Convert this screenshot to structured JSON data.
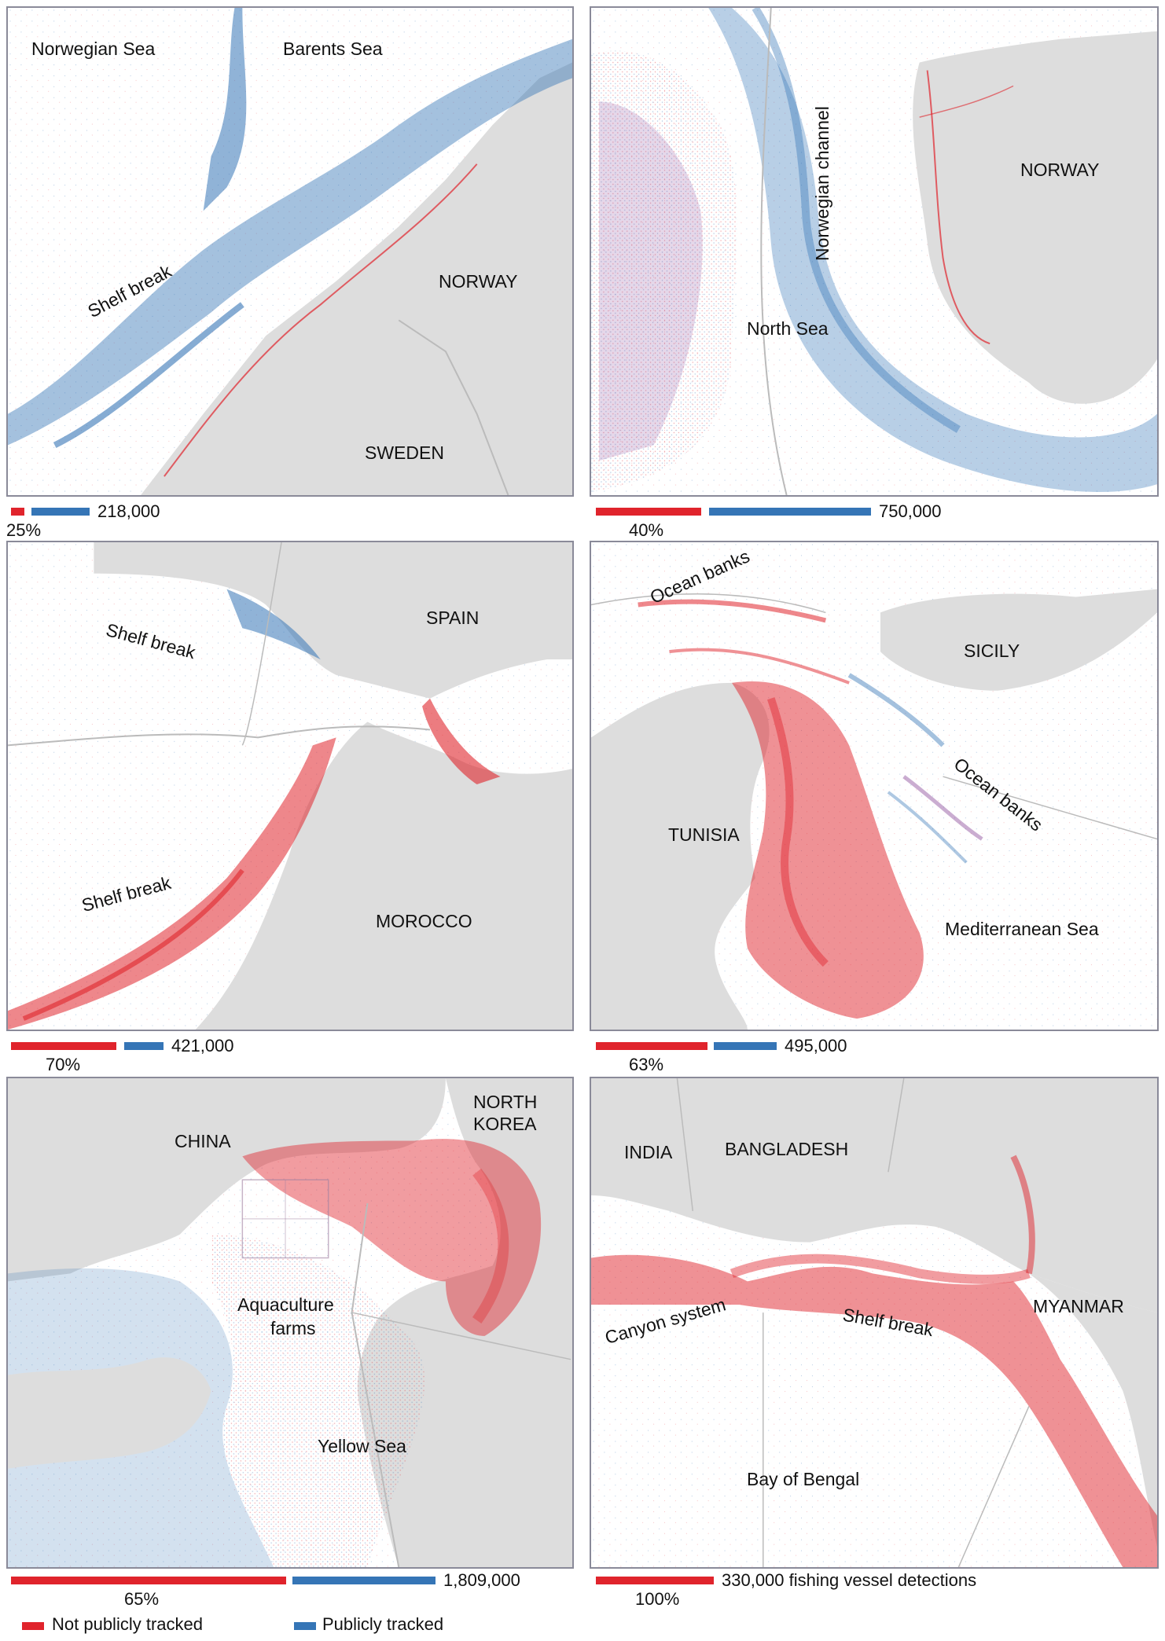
{
  "colors": {
    "not_public": "#e0242c",
    "public": "#3575b6",
    "land": "#dddddd",
    "border": "#8a8a99"
  },
  "panels": [
    {
      "id": "norway-barents",
      "labels": {
        "sea1": "Norwegian Sea",
        "sea2": "Barents Sea",
        "shelf": "Shelf break",
        "country1": "NORWAY",
        "country2": "SWEDEN"
      },
      "not_public_pct": 25,
      "pct_label": "25%",
      "total_label": "218,000"
    },
    {
      "id": "north-sea",
      "labels": {
        "channel": "Norwegian channel",
        "country1": "NORWAY",
        "sea1": "North Sea"
      },
      "not_public_pct": 40,
      "pct_label": "40%",
      "total_label": "750,000"
    },
    {
      "id": "gibraltar",
      "labels": {
        "shelf1": "Shelf break",
        "shelf2": "Shelf break",
        "country1": "SPAIN",
        "country2": "MOROCCO"
      },
      "not_public_pct": 70,
      "pct_label": "70%",
      "total_label": "421,000"
    },
    {
      "id": "sicily-tunisia",
      "labels": {
        "banks1": "Ocean banks",
        "banks2": "Ocean banks",
        "country1": "SICILY",
        "country2": "TUNISIA",
        "sea1": "Mediterranean Sea"
      },
      "not_public_pct": 63,
      "pct_label": "63%",
      "total_label": "495,000"
    },
    {
      "id": "yellow-sea",
      "labels": {
        "country1": "CHINA",
        "country2_line1": "NORTH",
        "country2_line2": "KOREA",
        "aqua_line1": "Aquaculture",
        "aqua_line2": "farms",
        "sea1": "Yellow Sea"
      },
      "not_public_pct": 65,
      "pct_label": "65%",
      "total_label": "1,809,000"
    },
    {
      "id": "bay-of-bengal",
      "labels": {
        "country1": "INDIA",
        "country2": "BANGLADESH",
        "country3": "MYANMAR",
        "canyon": "Canyon system",
        "shelf": "Shelf break",
        "sea1": "Bay of Bengal"
      },
      "not_public_pct": 100,
      "pct_label": "100%",
      "total_label": "330,000 fishing vessel detections"
    }
  ],
  "legend": {
    "not_public": "Not publicly tracked",
    "public": "Publicly tracked"
  }
}
